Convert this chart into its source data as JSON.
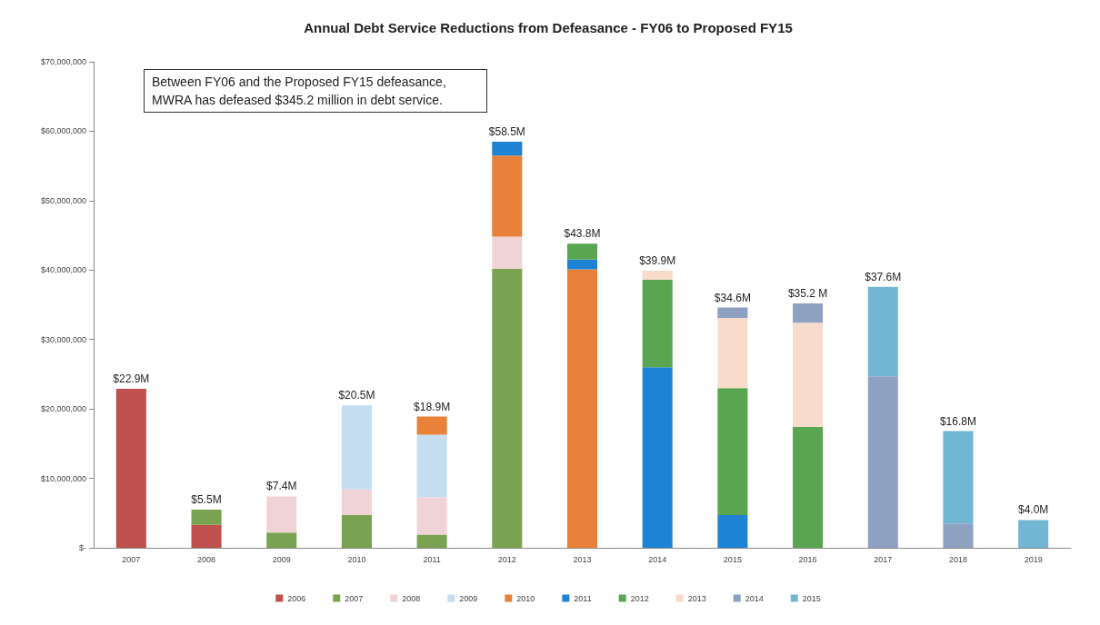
{
  "chart_data": {
    "type": "bar",
    "stacked": true,
    "title": "Annual Debt Service Reductions from Defeasance - FY06 to Proposed FY15",
    "annotations": [
      "Between FY06 and the Proposed FY15 defeasance, MWRA has defeased $345.2 million in debt service."
    ],
    "categories": [
      "2007",
      "2008",
      "2009",
      "2010",
      "2011",
      "2012",
      "2013",
      "2014",
      "2015",
      "2016",
      "2017",
      "2018",
      "2019"
    ],
    "series": [
      {
        "name": "2006",
        "color": "#c0504d",
        "values": [
          22900000,
          3300000,
          null,
          null,
          null,
          null,
          null,
          null,
          null,
          null,
          null,
          null,
          null
        ]
      },
      {
        "name": "2007",
        "color": "#7aa351",
        "values": [
          null,
          2200000,
          2200000,
          4700000,
          1900000,
          40200000,
          null,
          null,
          null,
          null,
          null,
          null,
          null
        ]
      },
      {
        "name": "2008",
        "color": "#f0d3d6",
        "values": [
          null,
          null,
          5200000,
          3700000,
          5400000,
          4600000,
          null,
          null,
          null,
          null,
          null,
          null,
          null
        ]
      },
      {
        "name": "2009",
        "color": "#c5ddf0",
        "values": [
          null,
          null,
          null,
          12100000,
          9000000,
          null,
          null,
          null,
          null,
          null,
          null,
          null,
          null
        ]
      },
      {
        "name": "2010",
        "color": "#e8823a",
        "values": [
          null,
          null,
          null,
          null,
          2600000,
          11700000,
          40100000,
          null,
          null,
          null,
          null,
          null,
          null
        ]
      },
      {
        "name": "2011",
        "color": "#1f83d4",
        "values": [
          null,
          null,
          null,
          null,
          null,
          2000000,
          1400000,
          26000000,
          4700000,
          null,
          null,
          null,
          null
        ]
      },
      {
        "name": "2012",
        "color": "#5aa552",
        "values": [
          null,
          null,
          null,
          null,
          null,
          null,
          2300000,
          12600000,
          18300000,
          17400000,
          null,
          null,
          null
        ]
      },
      {
        "name": "2013",
        "color": "#f7dccb",
        "values": [
          null,
          null,
          null,
          null,
          null,
          null,
          null,
          1300000,
          10100000,
          15000000,
          null,
          null,
          null
        ]
      },
      {
        "name": "2014",
        "color": "#8fa1c1",
        "values": [
          null,
          null,
          null,
          null,
          null,
          null,
          null,
          null,
          1500000,
          2800000,
          24700000,
          3500000,
          null
        ]
      },
      {
        "name": "2015",
        "color": "#72b6d3",
        "values": [
          null,
          null,
          null,
          null,
          null,
          null,
          null,
          null,
          null,
          null,
          12900000,
          13300000,
          4000000
        ]
      }
    ],
    "totals": [
      "$22.9M",
      "$5.5M",
      "$7.4M",
      "$20.5M",
      "$18.9M",
      "$58.5M",
      "$43.8M",
      "$39.9M",
      "$34.6M",
      "$35.2 M",
      "$37.6M",
      "$16.8M",
      "$4.0M"
    ],
    "ylim": [
      0,
      70000000
    ],
    "yticks": [
      {
        "value": 0,
        "label": "$-"
      },
      {
        "value": 10000000,
        "label": "$10,000,000"
      },
      {
        "value": 20000000,
        "label": "$20,000,000"
      },
      {
        "value": 30000000,
        "label": "$30,000,000"
      },
      {
        "value": 40000000,
        "label": "$40,000,000"
      },
      {
        "value": 50000000,
        "label": "$50,000,000"
      },
      {
        "value": 60000000,
        "label": "$60,000,000"
      },
      {
        "value": 70000000,
        "label": "$70,000,000"
      }
    ],
    "grid": false,
    "legend": "bottom"
  }
}
